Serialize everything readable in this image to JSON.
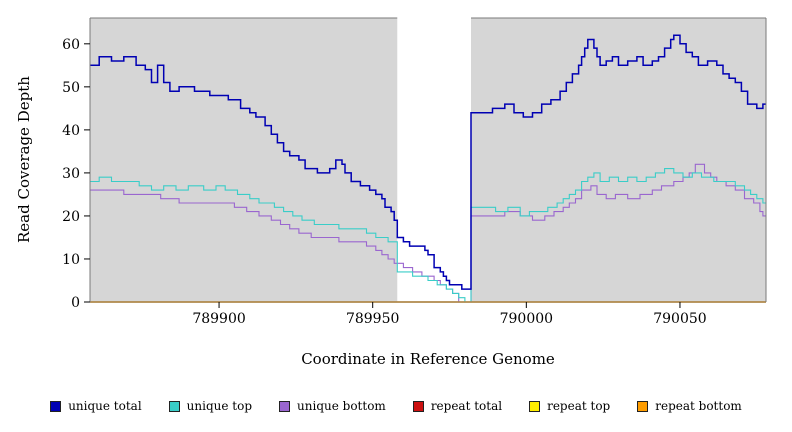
{
  "chart_data": {
    "type": "line",
    "step": true,
    "title": "",
    "xlabel": "Coordinate in Reference Genome",
    "ylabel": "Read Coverage Depth",
    "xlim": [
      789858,
      790078
    ],
    "ylim": [
      0,
      66
    ],
    "x_ticks": [
      789900,
      789950,
      790000,
      790050
    ],
    "y_ticks": [
      0,
      10,
      20,
      30,
      40,
      50,
      60
    ],
    "plot_bg": "#d6d6d6",
    "frame_color": "#7a7a7a",
    "highlight_region": {
      "x0": 789958,
      "x1": 789982,
      "color": "#ffffff"
    },
    "legend_position": "bottom",
    "series": [
      {
        "name": "unique total",
        "color": "#0000b3",
        "width": 1.5,
        "points": [
          [
            789858,
            55
          ],
          [
            789861,
            57
          ],
          [
            789865,
            56
          ],
          [
            789869,
            57
          ],
          [
            789873,
            55
          ],
          [
            789876,
            54
          ],
          [
            789878,
            51
          ],
          [
            789880,
            55
          ],
          [
            789882,
            51
          ],
          [
            789884,
            49
          ],
          [
            789887,
            50
          ],
          [
            789892,
            49
          ],
          [
            789897,
            48
          ],
          [
            789903,
            47
          ],
          [
            789907,
            45
          ],
          [
            789910,
            44
          ],
          [
            789912,
            43
          ],
          [
            789915,
            41
          ],
          [
            789917,
            39
          ],
          [
            789919,
            37
          ],
          [
            789921,
            35
          ],
          [
            789923,
            34
          ],
          [
            789926,
            33
          ],
          [
            789928,
            31
          ],
          [
            789932,
            30
          ],
          [
            789936,
            31
          ],
          [
            789938,
            33
          ],
          [
            789940,
            32
          ],
          [
            789941,
            30
          ],
          [
            789943,
            28
          ],
          [
            789946,
            27
          ],
          [
            789949,
            26
          ],
          [
            789951,
            25
          ],
          [
            789953,
            24
          ],
          [
            789954,
            22
          ],
          [
            789956,
            21
          ],
          [
            789957,
            19
          ],
          [
            789958,
            15
          ],
          [
            789960,
            14
          ],
          [
            789962,
            13
          ],
          [
            789965,
            13
          ],
          [
            789967,
            12
          ],
          [
            789968,
            11
          ],
          [
            789970,
            8
          ],
          [
            789972,
            7
          ],
          [
            789973,
            6
          ],
          [
            789974,
            5
          ],
          [
            789975,
            4
          ],
          [
            789979,
            3
          ],
          [
            789982,
            44
          ],
          [
            789985,
            44
          ],
          [
            789989,
            45
          ],
          [
            789993,
            46
          ],
          [
            789996,
            44
          ],
          [
            789999,
            43
          ],
          [
            790002,
            44
          ],
          [
            790005,
            46
          ],
          [
            790008,
            47
          ],
          [
            790011,
            49
          ],
          [
            790013,
            51
          ],
          [
            790015,
            53
          ],
          [
            790017,
            55
          ],
          [
            790018,
            57
          ],
          [
            790019,
            59
          ],
          [
            790020,
            61
          ],
          [
            790022,
            59
          ],
          [
            790023,
            57
          ],
          [
            790024,
            55
          ],
          [
            790026,
            56
          ],
          [
            790028,
            57
          ],
          [
            790030,
            55
          ],
          [
            790033,
            56
          ],
          [
            790036,
            57
          ],
          [
            790038,
            55
          ],
          [
            790041,
            56
          ],
          [
            790043,
            57
          ],
          [
            790045,
            59
          ],
          [
            790047,
            61
          ],
          [
            790048,
            62
          ],
          [
            790050,
            60
          ],
          [
            790052,
            58
          ],
          [
            790054,
            57
          ],
          [
            790056,
            55
          ],
          [
            790059,
            56
          ],
          [
            790062,
            55
          ],
          [
            790064,
            53
          ],
          [
            790066,
            52
          ],
          [
            790068,
            51
          ],
          [
            790070,
            49
          ],
          [
            790072,
            46
          ],
          [
            790075,
            45
          ],
          [
            790077,
            46
          ]
        ]
      },
      {
        "name": "unique top",
        "color": "#3acdc8",
        "width": 1.1,
        "points": [
          [
            789858,
            28
          ],
          [
            789861,
            29
          ],
          [
            789865,
            28
          ],
          [
            789870,
            28
          ],
          [
            789874,
            27
          ],
          [
            789878,
            26
          ],
          [
            789882,
            27
          ],
          [
            789886,
            26
          ],
          [
            789890,
            27
          ],
          [
            789895,
            26
          ],
          [
            789899,
            27
          ],
          [
            789902,
            26
          ],
          [
            789906,
            25
          ],
          [
            789910,
            24
          ],
          [
            789913,
            23
          ],
          [
            789916,
            23
          ],
          [
            789918,
            22
          ],
          [
            789921,
            21
          ],
          [
            789924,
            20
          ],
          [
            789927,
            19
          ],
          [
            789931,
            18
          ],
          [
            789936,
            18
          ],
          [
            789939,
            17
          ],
          [
            789944,
            17
          ],
          [
            789948,
            16
          ],
          [
            789951,
            15
          ],
          [
            789955,
            14
          ],
          [
            789958,
            7
          ],
          [
            789963,
            6
          ],
          [
            789968,
            5
          ],
          [
            789971,
            4
          ],
          [
            789974,
            3
          ],
          [
            789976,
            2
          ],
          [
            789978,
            1
          ],
          [
            789980,
            0
          ],
          [
            789982,
            22
          ],
          [
            789986,
            22
          ],
          [
            789990,
            21
          ],
          [
            789994,
            22
          ],
          [
            789998,
            20
          ],
          [
            790001,
            21
          ],
          [
            790004,
            21
          ],
          [
            790007,
            22
          ],
          [
            790010,
            23
          ],
          [
            790012,
            24
          ],
          [
            790014,
            25
          ],
          [
            790016,
            26
          ],
          [
            790018,
            28
          ],
          [
            790020,
            29
          ],
          [
            790022,
            30
          ],
          [
            790024,
            28
          ],
          [
            790027,
            29
          ],
          [
            790030,
            28
          ],
          [
            790033,
            29
          ],
          [
            790036,
            28
          ],
          [
            790039,
            29
          ],
          [
            790042,
            30
          ],
          [
            790045,
            31
          ],
          [
            790048,
            30
          ],
          [
            790051,
            29
          ],
          [
            790054,
            30
          ],
          [
            790057,
            29
          ],
          [
            790061,
            28
          ],
          [
            790065,
            28
          ],
          [
            790068,
            27
          ],
          [
            790071,
            26
          ],
          [
            790073,
            25
          ],
          [
            790075,
            24
          ],
          [
            790077,
            23
          ]
        ]
      },
      {
        "name": "unique bottom",
        "color": "#9a66cf",
        "width": 1.1,
        "points": [
          [
            789858,
            26
          ],
          [
            789864,
            26
          ],
          [
            789869,
            25
          ],
          [
            789875,
            25
          ],
          [
            789881,
            24
          ],
          [
            789887,
            23
          ],
          [
            789894,
            23
          ],
          [
            789900,
            23
          ],
          [
            789905,
            22
          ],
          [
            789909,
            21
          ],
          [
            789913,
            20
          ],
          [
            789917,
            19
          ],
          [
            789920,
            18
          ],
          [
            789923,
            17
          ],
          [
            789926,
            16
          ],
          [
            789930,
            15
          ],
          [
            789935,
            15
          ],
          [
            789939,
            14
          ],
          [
            789944,
            14
          ],
          [
            789948,
            13
          ],
          [
            789951,
            12
          ],
          [
            789953,
            11
          ],
          [
            789955,
            10
          ],
          [
            789957,
            9
          ],
          [
            789960,
            8
          ],
          [
            789963,
            7
          ],
          [
            789966,
            6
          ],
          [
            789970,
            5
          ],
          [
            789972,
            4
          ],
          [
            789974,
            3
          ],
          [
            789976,
            2
          ],
          [
            789978,
            0
          ],
          [
            789982,
            20
          ],
          [
            789988,
            20
          ],
          [
            789993,
            21
          ],
          [
            789998,
            20
          ],
          [
            790002,
            19
          ],
          [
            790006,
            20
          ],
          [
            790009,
            21
          ],
          [
            790012,
            22
          ],
          [
            790014,
            23
          ],
          [
            790016,
            24
          ],
          [
            790018,
            26
          ],
          [
            790021,
            27
          ],
          [
            790023,
            25
          ],
          [
            790026,
            24
          ],
          [
            790029,
            25
          ],
          [
            790033,
            24
          ],
          [
            790037,
            25
          ],
          [
            790041,
            26
          ],
          [
            790044,
            27
          ],
          [
            790048,
            28
          ],
          [
            790051,
            29
          ],
          [
            790053,
            30
          ],
          [
            790055,
            32
          ],
          [
            790058,
            30
          ],
          [
            790060,
            29
          ],
          [
            790062,
            28
          ],
          [
            790065,
            27
          ],
          [
            790068,
            26
          ],
          [
            790071,
            24
          ],
          [
            790074,
            23
          ],
          [
            790076,
            21
          ],
          [
            790077,
            20
          ]
        ]
      },
      {
        "name": "repeat total",
        "color": "#cc1111",
        "width": 1.2,
        "points": [
          [
            789858,
            0
          ]
        ]
      },
      {
        "name": "repeat top",
        "color": "#ffee00",
        "width": 1.2,
        "points": [
          [
            789858,
            0
          ]
        ]
      },
      {
        "name": "repeat bottom",
        "color": "#ff9d00",
        "width": 1.4,
        "points": [
          [
            789858,
            0
          ]
        ]
      }
    ],
    "draw_order": [
      3,
      4,
      2,
      1,
      0,
      5
    ]
  }
}
